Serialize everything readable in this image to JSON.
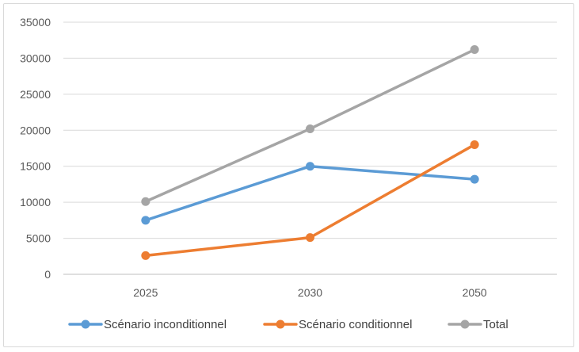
{
  "chart_data": {
    "type": "line",
    "categories": [
      "2025",
      "2030",
      "2050"
    ],
    "series": [
      {
        "name": "Scénario inconditionnel",
        "values": [
          7500,
          15000,
          13200
        ],
        "color": "#5b9bd5"
      },
      {
        "name": "Scénario conditionnel",
        "values": [
          2600,
          5100,
          18000
        ],
        "color": "#ed7d31"
      },
      {
        "name": "Total",
        "values": [
          10100,
          20200,
          31200
        ],
        "color": "#a5a5a5"
      }
    ],
    "y_ticks": [
      "0",
      "5000",
      "10000",
      "15000",
      "20000",
      "25000",
      "30000",
      "35000"
    ],
    "ylim": [
      0,
      35000
    ],
    "grid": true,
    "legend_position": "bottom"
  }
}
